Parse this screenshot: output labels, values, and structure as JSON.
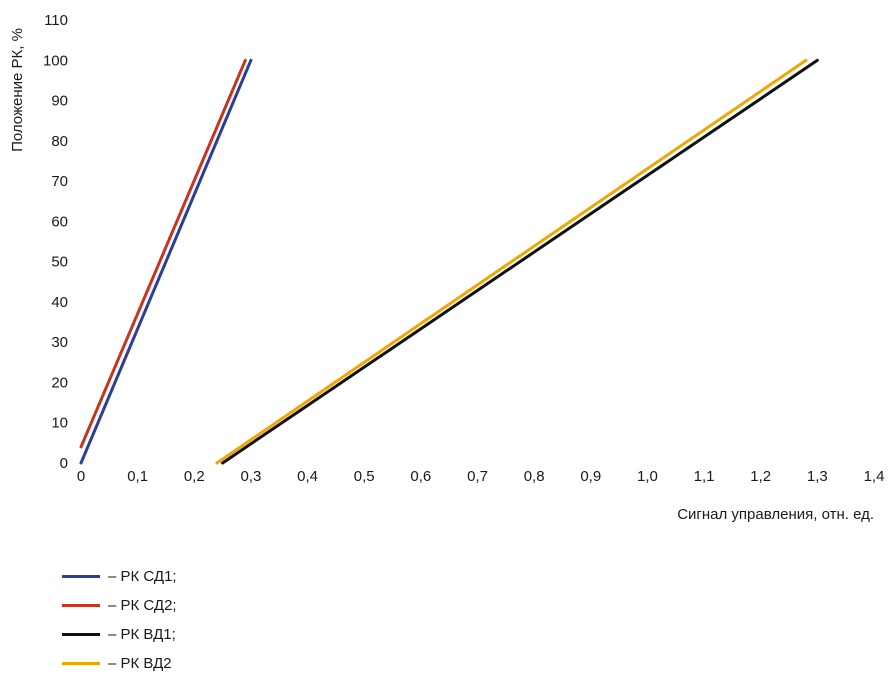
{
  "chart_data": {
    "type": "line",
    "xlabel": "Сигнал управления, отн. ед.",
    "ylabel": "Положение РК, %",
    "xlim": [
      0,
      1.4
    ],
    "ylim": [
      0,
      110
    ],
    "xticks": [
      "0",
      "0,1",
      "0,2",
      "0,3",
      "0,4",
      "0,5",
      "0,6",
      "0,7",
      "0,8",
      "0,9",
      "1,0",
      "1,1",
      "1,2",
      "1,3",
      "1,4"
    ],
    "yticks": [
      "0",
      "10",
      "20",
      "30",
      "40",
      "50",
      "60",
      "70",
      "80",
      "90",
      "100",
      "110"
    ],
    "grid": false,
    "legend_position": "bottom-left",
    "series": [
      {
        "name": "– РК СД1;",
        "color": "#2b3f9a",
        "x": [
          0.0,
          0.3
        ],
        "y": [
          0,
          100
        ]
      },
      {
        "name": "– РК СД2;",
        "color": "#c8341c",
        "x": [
          0.0,
          0.29
        ],
        "y": [
          4,
          100
        ]
      },
      {
        "name": "– РК ВД1;",
        "color": "#111111",
        "x": [
          0.25,
          1.3
        ],
        "y": [
          0,
          100
        ]
      },
      {
        "name": "– РК ВД2",
        "color": "#f0a800",
        "x": [
          0.24,
          1.28
        ],
        "y": [
          0,
          100
        ]
      }
    ]
  }
}
